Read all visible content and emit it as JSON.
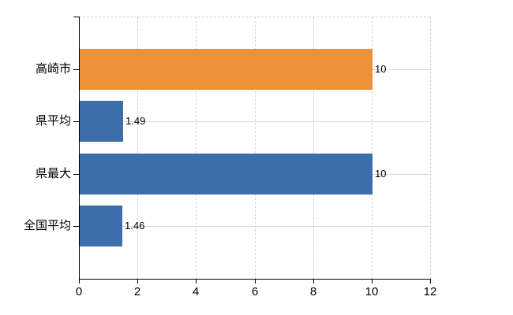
{
  "chart_data": {
    "type": "bar",
    "orientation": "horizontal",
    "title": "",
    "categories": [
      "高崎市",
      "県平均",
      "県最大",
      "全国平均"
    ],
    "values": [
      10,
      1.49,
      10,
      1.46
    ],
    "value_labels": [
      "10",
      "1.49",
      "10",
      "1.46"
    ],
    "bar_colors": [
      "#EC9137",
      "#3C6EAC",
      "#3C6EAC",
      "#3C6EAC"
    ],
    "xlim": [
      0,
      12
    ],
    "x_ticks": [
      0,
      2,
      4,
      6,
      8,
      10,
      12
    ],
    "grid": true,
    "legend": "none"
  },
  "colors": {
    "axis": "#000000",
    "gridline_solid": "#D9D9D9",
    "gridline_dashed": "#D4D4D4",
    "background": "#FFFFFF",
    "text": "#000000"
  }
}
